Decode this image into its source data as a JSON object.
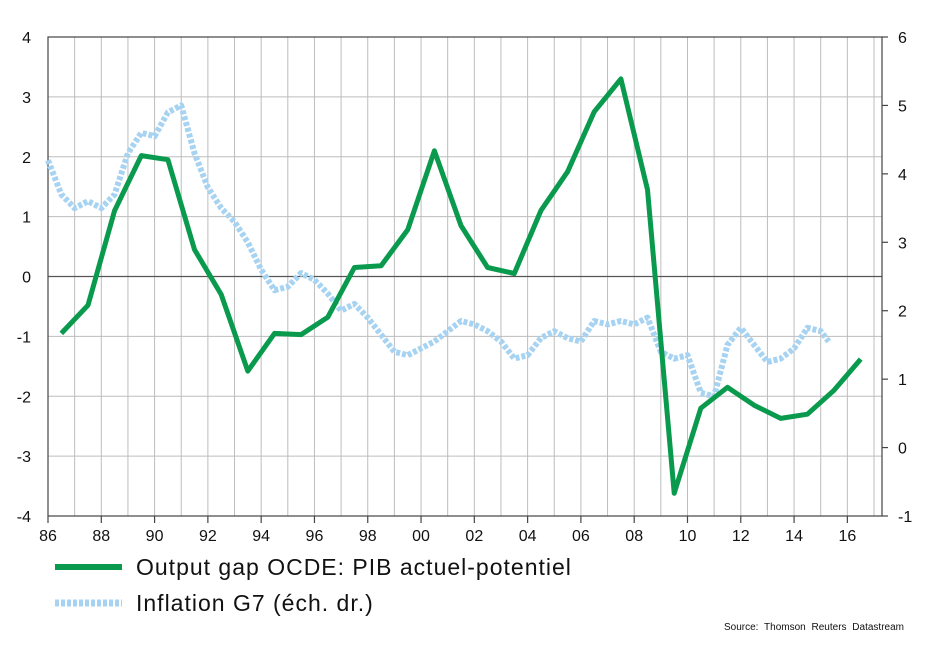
{
  "chart_data": {
    "type": "line",
    "x_ticks": [
      "86",
      "88",
      "90",
      "92",
      "94",
      "96",
      "98",
      "00",
      "02",
      "04",
      "06",
      "08",
      "10",
      "12",
      "14",
      "16"
    ],
    "y_left_ticks": [
      "4",
      "3",
      "2",
      "1",
      "0",
      "-1",
      "-2",
      "-3",
      "-4"
    ],
    "y_right_ticks": [
      "6",
      "5",
      "4",
      "3",
      "2",
      "1",
      "0",
      "-1"
    ],
    "ylim_left": [
      -4,
      4
    ],
    "ylim_right": [
      -1,
      6
    ],
    "xlim": [
      1986,
      2017.3
    ],
    "grid": true,
    "legend_position": "bottom-left",
    "source": "Source: Thomson Reuters Datastream",
    "series": [
      {
        "name": "Output gap OCDE: PIB actuel-potentiel",
        "axis": "left",
        "color": "#0a9a4e",
        "style": "solid",
        "points": [
          [
            1986.5,
            -0.95
          ],
          [
            1987.5,
            -0.48
          ],
          [
            1988.5,
            1.1
          ],
          [
            1989.5,
            2.02
          ],
          [
            1990.5,
            1.95
          ],
          [
            1991.5,
            0.45
          ],
          [
            1992.5,
            -0.3
          ],
          [
            1993.5,
            -1.58
          ],
          [
            1994.5,
            -0.95
          ],
          [
            1995.5,
            -0.97
          ],
          [
            1996.5,
            -0.68
          ],
          [
            1997.5,
            0.15
          ],
          [
            1998.5,
            0.18
          ],
          [
            1999.5,
            0.78
          ],
          [
            2000.5,
            2.1
          ],
          [
            2001.5,
            0.85
          ],
          [
            2002.5,
            0.15
          ],
          [
            2003.5,
            0.05
          ],
          [
            2004.5,
            1.1
          ],
          [
            2005.5,
            1.75
          ],
          [
            2006.5,
            2.75
          ],
          [
            2007.5,
            3.3
          ],
          [
            2008.5,
            1.45
          ],
          [
            2009.5,
            -3.62
          ],
          [
            2010.5,
            -2.2
          ],
          [
            2011.5,
            -1.85
          ],
          [
            2012.5,
            -2.15
          ],
          [
            2013.5,
            -2.37
          ],
          [
            2014.5,
            -2.3
          ],
          [
            2015.5,
            -1.9
          ],
          [
            2016.5,
            -1.38
          ]
        ]
      },
      {
        "name": "Inflation G7 (éch. dr.)",
        "axis": "right",
        "color": "#a7d3f2",
        "style": "dotted",
        "points": [
          [
            1986.0,
            4.2
          ],
          [
            1986.5,
            3.7
          ],
          [
            1987.0,
            3.5
          ],
          [
            1987.5,
            3.6
          ],
          [
            1988.0,
            3.5
          ],
          [
            1988.5,
            3.7
          ],
          [
            1989.0,
            4.3
          ],
          [
            1989.5,
            4.6
          ],
          [
            1990.0,
            4.55
          ],
          [
            1990.5,
            4.9
          ],
          [
            1991.0,
            5.0
          ],
          [
            1991.5,
            4.3
          ],
          [
            1992.0,
            3.8
          ],
          [
            1992.5,
            3.5
          ],
          [
            1993.0,
            3.3
          ],
          [
            1993.5,
            3.0
          ],
          [
            1994.0,
            2.6
          ],
          [
            1994.5,
            2.3
          ],
          [
            1995.0,
            2.35
          ],
          [
            1995.5,
            2.55
          ],
          [
            1996.0,
            2.45
          ],
          [
            1996.5,
            2.25
          ],
          [
            1997.0,
            2.0
          ],
          [
            1997.5,
            2.1
          ],
          [
            1998.0,
            1.9
          ],
          [
            1998.5,
            1.65
          ],
          [
            1999.0,
            1.4
          ],
          [
            1999.5,
            1.35
          ],
          [
            2000.0,
            1.45
          ],
          [
            2000.5,
            1.55
          ],
          [
            2001.0,
            1.7
          ],
          [
            2001.5,
            1.85
          ],
          [
            2002.0,
            1.8
          ],
          [
            2002.5,
            1.7
          ],
          [
            2003.0,
            1.55
          ],
          [
            2003.5,
            1.3
          ],
          [
            2004.0,
            1.35
          ],
          [
            2004.5,
            1.6
          ],
          [
            2005.0,
            1.7
          ],
          [
            2005.5,
            1.6
          ],
          [
            2006.0,
            1.55
          ],
          [
            2006.5,
            1.85
          ],
          [
            2007.0,
            1.8
          ],
          [
            2007.5,
            1.85
          ],
          [
            2008.0,
            1.8
          ],
          [
            2008.5,
            1.9
          ],
          [
            2009.0,
            1.4
          ],
          [
            2009.5,
            1.3
          ],
          [
            2010.0,
            1.35
          ],
          [
            2010.5,
            0.8
          ],
          [
            2011.0,
            0.75
          ],
          [
            2011.5,
            1.5
          ],
          [
            2012.0,
            1.75
          ],
          [
            2012.5,
            1.5
          ],
          [
            2013.0,
            1.25
          ],
          [
            2013.5,
            1.3
          ],
          [
            2014.0,
            1.45
          ],
          [
            2014.5,
            1.75
          ],
          [
            2015.0,
            1.7
          ],
          [
            2015.3,
            1.55
          ]
        ]
      }
    ]
  }
}
